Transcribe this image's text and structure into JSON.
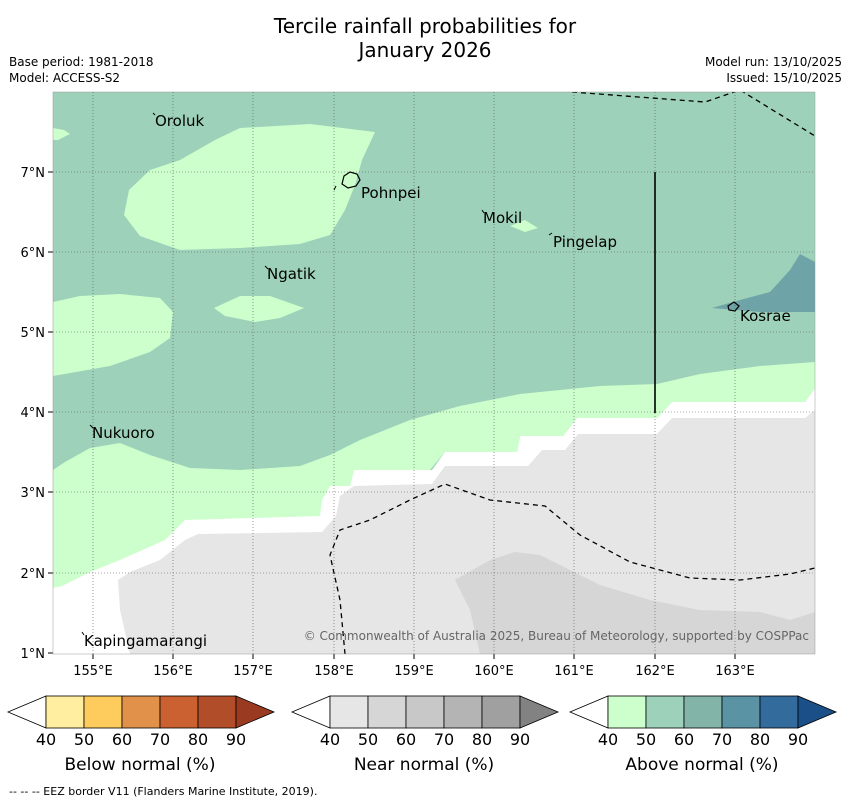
{
  "title_line1": "Tercile rainfall probabilities for",
  "title_line2": "January 2026",
  "meta": {
    "base_period": "Base period: 1981-2018",
    "model": "Model: ACCESS-S2",
    "model_run": "Model run: 13/10/2025",
    "issued": "Issued: 15/10/2025"
  },
  "map": {
    "lon_labels": [
      "155°E",
      "156°E",
      "157°E",
      "158°E",
      "159°E",
      "160°E",
      "161°E",
      "162°E",
      "163°E"
    ],
    "lat_labels": [
      "7°N",
      "6°N",
      "5°N",
      "4°N",
      "3°N",
      "2°N",
      "1°N"
    ],
    "places": [
      "Oroluk",
      "Pohnpei",
      "Mokil",
      "Pingelap",
      "Ngatik",
      "Kosrae",
      "Nukuoro",
      "Kapingamarangi"
    ],
    "copyright": "© Commonwealth of Australia 2025, Bureau of Meteorology, supported by COSPPac"
  },
  "legend": {
    "ticks": [
      "40",
      "50",
      "60",
      "70",
      "80",
      "90"
    ],
    "below": {
      "label": "Below normal (%)",
      "colors": [
        "#ffffff",
        "#ffeda0",
        "#fecc5c",
        "#e1914a",
        "#cb6130",
        "#b24d2a",
        "#9a3b21"
      ]
    },
    "near": {
      "label": "Near normal (%)",
      "colors": [
        "#ffffff",
        "#e6e6e6",
        "#d6d6d6",
        "#c8c8c8",
        "#b4b4b4",
        "#a0a0a0",
        "#828282"
      ]
    },
    "above": {
      "label": "Above normal (%)",
      "colors": [
        "#ffffff",
        "#ccffcc",
        "#9dd1b9",
        "#82b5a8",
        "#5a93a3",
        "#336b9c",
        "#1a4f87"
      ]
    }
  },
  "footer": "--  --  -- EEZ border V11 (Flanders Marine Institute, 2019)."
}
